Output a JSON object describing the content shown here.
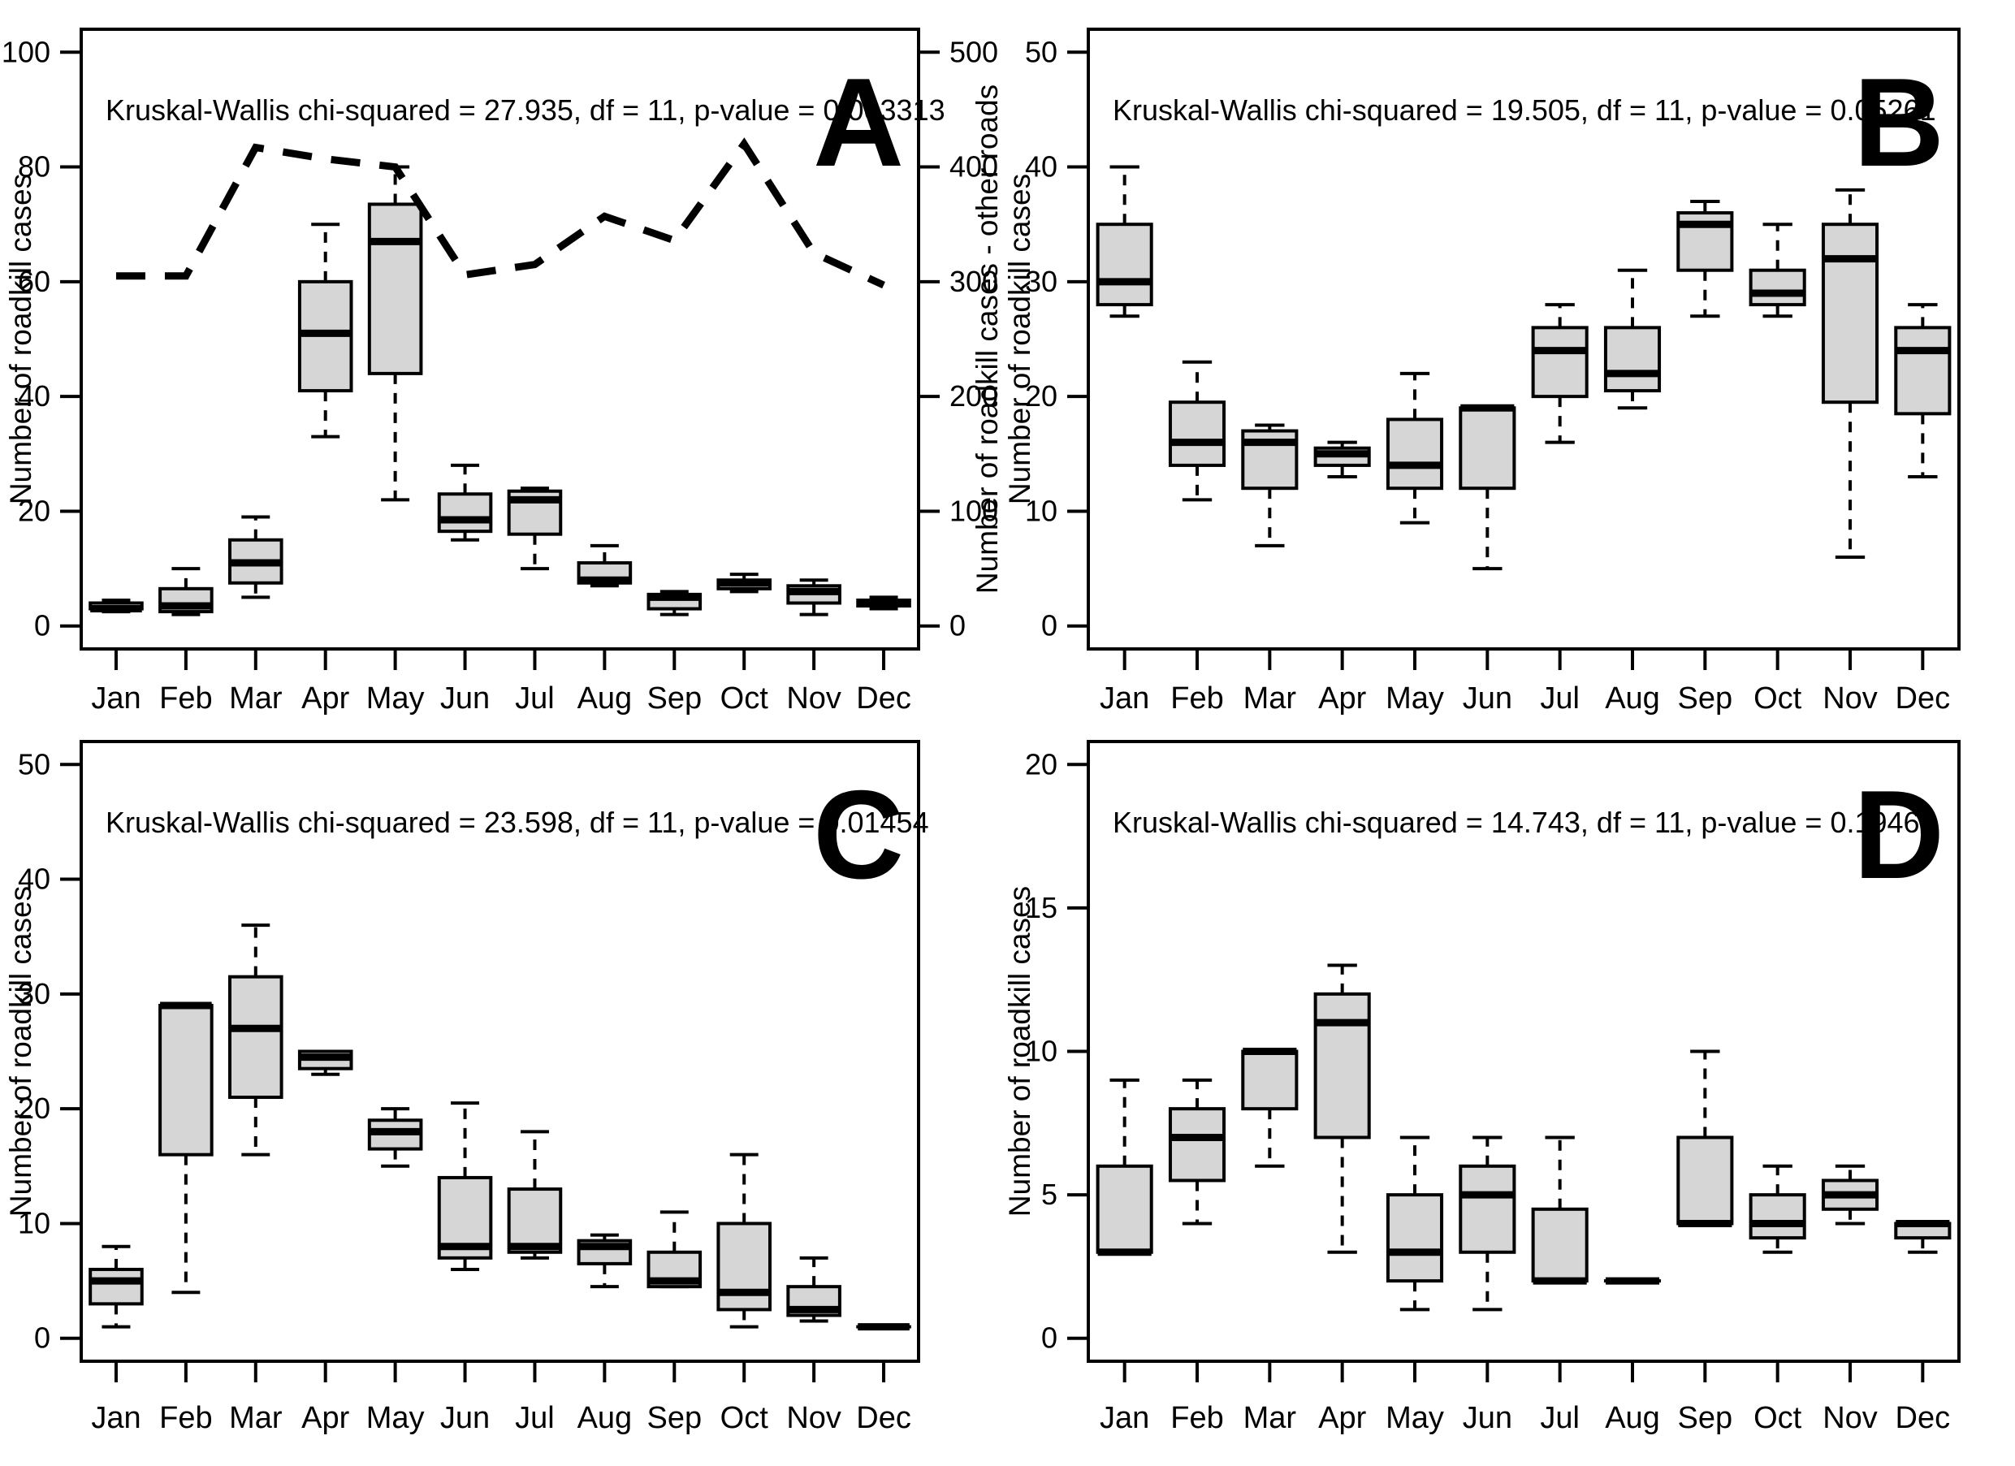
{
  "figure": {
    "background": "#ffffff",
    "stroke_color": "#000000",
    "box_fill": "#d6d6d6",
    "months": [
      "Jan",
      "Feb",
      "Mar",
      "Apr",
      "May",
      "Jun",
      "Jul",
      "Aug",
      "Sep",
      "Oct",
      "Nov",
      "Dec"
    ],
    "box_format": [
      "min",
      "q1",
      "median",
      "q3",
      "max"
    ]
  },
  "chart_data": [
    {
      "type": "boxplot",
      "panel_label": "A",
      "annotation": "Kruskal-Wallis chi-squared = 27.935, df = 11, p-value = 0.003313",
      "ylabel": "Number of roadkill cases",
      "ylim": [
        0,
        100
      ],
      "yticks": [
        0,
        20,
        40,
        60,
        80,
        100
      ],
      "categories": [
        "Jan",
        "Feb",
        "Mar",
        "Apr",
        "May",
        "Jun",
        "Jul",
        "Aug",
        "Sep",
        "Oct",
        "Nov",
        "Dec"
      ],
      "boxes": [
        [
          2.5,
          3,
          3,
          4,
          4.5
        ],
        [
          2,
          2.5,
          3.5,
          6.5,
          10
        ],
        [
          5,
          7.5,
          11,
          15,
          19
        ],
        [
          33,
          41,
          51,
          60,
          70
        ],
        [
          22,
          44,
          67,
          73.5,
          80
        ],
        [
          15,
          16.5,
          18.5,
          23,
          28
        ],
        [
          10,
          16,
          22,
          23.5,
          24
        ],
        [
          7,
          7.5,
          8,
          11,
          14
        ],
        [
          2,
          3,
          5,
          5.5,
          6
        ],
        [
          6,
          6.5,
          7.5,
          8,
          9
        ],
        [
          2,
          4,
          6,
          7,
          8
        ],
        [
          3,
          3.5,
          4,
          4.5,
          5
        ]
      ],
      "right_axis": {
        "ylabel": "Number of roadkill cases - other roads",
        "ylim": [
          0,
          500
        ],
        "yticks": [
          0,
          100,
          200,
          300,
          400,
          500
        ]
      },
      "dashed_line": {
        "name": "roadkill cases on other roads (right axis)",
        "axis": "right",
        "values": [
          305,
          305,
          417,
          407,
          400,
          306,
          315,
          357,
          336,
          420,
          325,
          297
        ]
      }
    },
    {
      "type": "boxplot",
      "panel_label": "B",
      "annotation": "Kruskal-Wallis chi-squared = 19.505, df = 11, p-value = 0.05261",
      "ylabel": "Number of roadkill cases",
      "ylim": [
        0,
        50
      ],
      "yticks": [
        0,
        10,
        20,
        30,
        40,
        50
      ],
      "categories": [
        "Jan",
        "Feb",
        "Mar",
        "Apr",
        "May",
        "Jun",
        "Jul",
        "Aug",
        "Sep",
        "Oct",
        "Nov",
        "Dec"
      ],
      "boxes": [
        [
          27,
          28,
          30,
          35,
          40
        ],
        [
          11,
          14,
          16,
          19.5,
          23
        ],
        [
          7,
          12,
          16,
          17,
          17.5
        ],
        [
          13,
          14,
          15,
          15.5,
          16
        ],
        [
          9,
          12,
          14,
          18,
          22
        ],
        [
          5,
          12,
          19,
          19,
          19
        ],
        [
          16,
          20,
          24,
          26,
          28
        ],
        [
          19,
          20.5,
          22,
          26,
          31
        ],
        [
          27,
          31,
          35,
          36,
          37
        ],
        [
          27,
          28,
          29,
          31,
          35
        ],
        [
          6,
          19.5,
          32,
          35,
          38
        ],
        [
          13,
          18.5,
          24,
          26,
          28
        ]
      ]
    },
    {
      "type": "boxplot",
      "panel_label": "C",
      "annotation": "Kruskal-Wallis chi-squared = 23.598, df = 11, p-value = 0.01454",
      "ylabel": "Number of roadkill cases",
      "ylim": [
        0,
        50
      ],
      "yticks": [
        0,
        10,
        20,
        30,
        40,
        50
      ],
      "categories": [
        "Jan",
        "Feb",
        "Mar",
        "Apr",
        "May",
        "Jun",
        "Jul",
        "Aug",
        "Sep",
        "Oct",
        "Nov",
        "Dec"
      ],
      "boxes": [
        [
          1,
          3,
          5,
          6,
          8
        ],
        [
          4,
          16,
          29,
          29,
          29
        ],
        [
          16,
          21,
          27,
          31.5,
          36
        ],
        [
          23,
          23.5,
          24.5,
          25,
          25
        ],
        [
          15,
          16.5,
          18,
          19,
          20
        ],
        [
          6,
          7,
          8,
          14,
          20.5
        ],
        [
          7,
          7.5,
          8,
          13,
          18
        ],
        [
          4.5,
          6.5,
          8,
          8.5,
          9
        ],
        [
          4.5,
          4.5,
          5,
          7.5,
          11
        ],
        [
          1,
          2.5,
          4,
          10,
          16
        ],
        [
          1.5,
          2,
          2.5,
          4.5,
          7
        ],
        [
          1,
          1,
          1,
          1,
          1
        ]
      ]
    },
    {
      "type": "boxplot",
      "panel_label": "D",
      "annotation": "Kruskal-Wallis chi-squared = 14.743, df = 11, p-value = 0.1946",
      "ylabel": "Number of roadkill cases",
      "ylim": [
        0,
        20
      ],
      "yticks": [
        0,
        5,
        10,
        15,
        20
      ],
      "categories": [
        "Jan",
        "Feb",
        "Mar",
        "Apr",
        "May",
        "Jun",
        "Jul",
        "Aug",
        "Sep",
        "Oct",
        "Nov",
        "Dec"
      ],
      "boxes": [
        [
          3,
          3,
          3,
          6,
          9
        ],
        [
          4,
          5.5,
          7,
          8,
          9
        ],
        [
          6,
          8,
          10,
          10,
          10
        ],
        [
          3,
          7,
          11,
          12,
          13
        ],
        [
          1,
          2,
          3,
          5,
          7
        ],
        [
          1,
          3,
          5,
          6,
          7
        ],
        [
          2,
          2,
          2,
          4.5,
          7
        ],
        [
          2,
          2,
          2,
          2,
          2
        ],
        [
          4,
          4,
          4,
          7,
          10
        ],
        [
          3,
          3.5,
          4,
          5,
          6
        ],
        [
          4,
          4.5,
          5,
          5.5,
          6
        ],
        [
          3,
          3.5,
          4,
          4,
          4
        ]
      ]
    }
  ]
}
